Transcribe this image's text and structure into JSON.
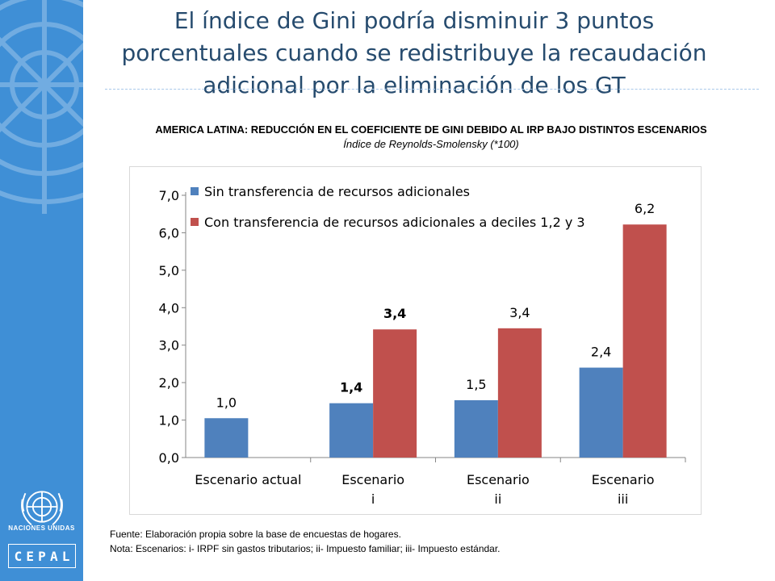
{
  "slide": {
    "title_lines": [
      "El índice de Gini podría disminuir 3 puntos",
      "porcentuales cuando se redistribuye la recaudación",
      "adicional por la eliminación de los GT"
    ]
  },
  "branding": {
    "un_text": "NACIONES UNIDAS",
    "cepal_letters": [
      "C",
      "E",
      "P",
      "A",
      "L"
    ]
  },
  "chart_heading": "AMERICA LATINA: REDUCCIÓN EN EL COEFICIENTE DE GINI DEBIDO AL IRP BAJO DISTINTOS ESCENARIOS",
  "chart_subheading": "Índice de Reynolds-Smolensky (*100)",
  "chart_data": {
    "type": "bar",
    "categories": [
      [
        "Escenario actual"
      ],
      [
        "Escenario",
        "i"
      ],
      [
        "Escenario",
        "ii"
      ],
      [
        "Escenario",
        "iii"
      ]
    ],
    "series": [
      {
        "name": "Sin transferencia de recursos adicionales",
        "color": "#4f81bd",
        "values": [
          1.05,
          1.45,
          1.53,
          2.4
        ],
        "labels": [
          "1,0",
          "1,4",
          "1,5",
          "2,4"
        ],
        "label_bold": [
          false,
          true,
          false,
          false
        ]
      },
      {
        "name": "Con transferencia de recursos adicionales a deciles 1,2 y 3",
        "color": "#c0504d",
        "values": [
          null,
          3.42,
          3.45,
          6.22
        ],
        "labels": [
          null,
          "3,4",
          "3,4",
          "6,2"
        ],
        "label_bold": [
          false,
          true,
          false,
          false
        ]
      }
    ],
    "y_ticks": [
      "0,0",
      "1,0",
      "2,0",
      "3,0",
      "4,0",
      "5,0",
      "6,0",
      "7,0"
    ],
    "ylim": [
      0,
      7
    ],
    "grid": false,
    "legend_position": "top-left"
  },
  "footer": {
    "source": "Fuente: Elaboración propia sobre la base de encuestas de hogares.",
    "note": "Nota: Escenarios: i- IRPF sin gastos tributarios; ii- Impuesto familiar; iii- Impuesto estándar."
  }
}
